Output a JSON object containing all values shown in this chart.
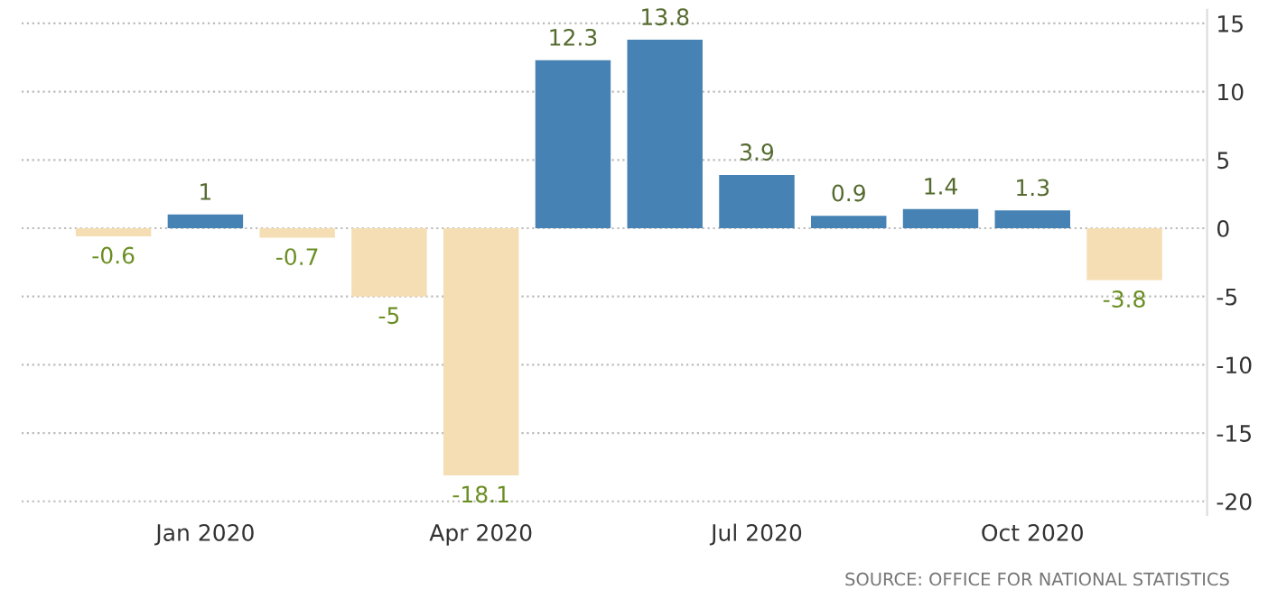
{
  "chart_data": {
    "type": "bar",
    "categories": [
      null,
      "Jan 2020",
      null,
      null,
      "Apr 2020",
      null,
      null,
      "Jul 2020",
      null,
      null,
      "Oct 2020",
      null
    ],
    "values": [
      -0.6,
      1,
      -0.7,
      -5,
      -18.1,
      12.3,
      13.8,
      3.9,
      0.9,
      1.4,
      1.3,
      -3.8
    ],
    "colors": [
      "#f5deb3",
      "#4682b4",
      "#f5deb3",
      "#f5deb3",
      "#f5deb3",
      "#4682b4",
      "#4682b4",
      "#4682b4",
      "#4682b4",
      "#4682b4",
      "#4682b4",
      "#f5deb3"
    ],
    "ylim": [
      -21,
      16
    ],
    "yticks": [
      -20,
      -15,
      -10,
      -5,
      0,
      5,
      10,
      15
    ],
    "grid": "y",
    "data_labels": true,
    "annotations": [
      "SOURCE: OFFICE FOR NATIONAL STATISTICS"
    ]
  }
}
